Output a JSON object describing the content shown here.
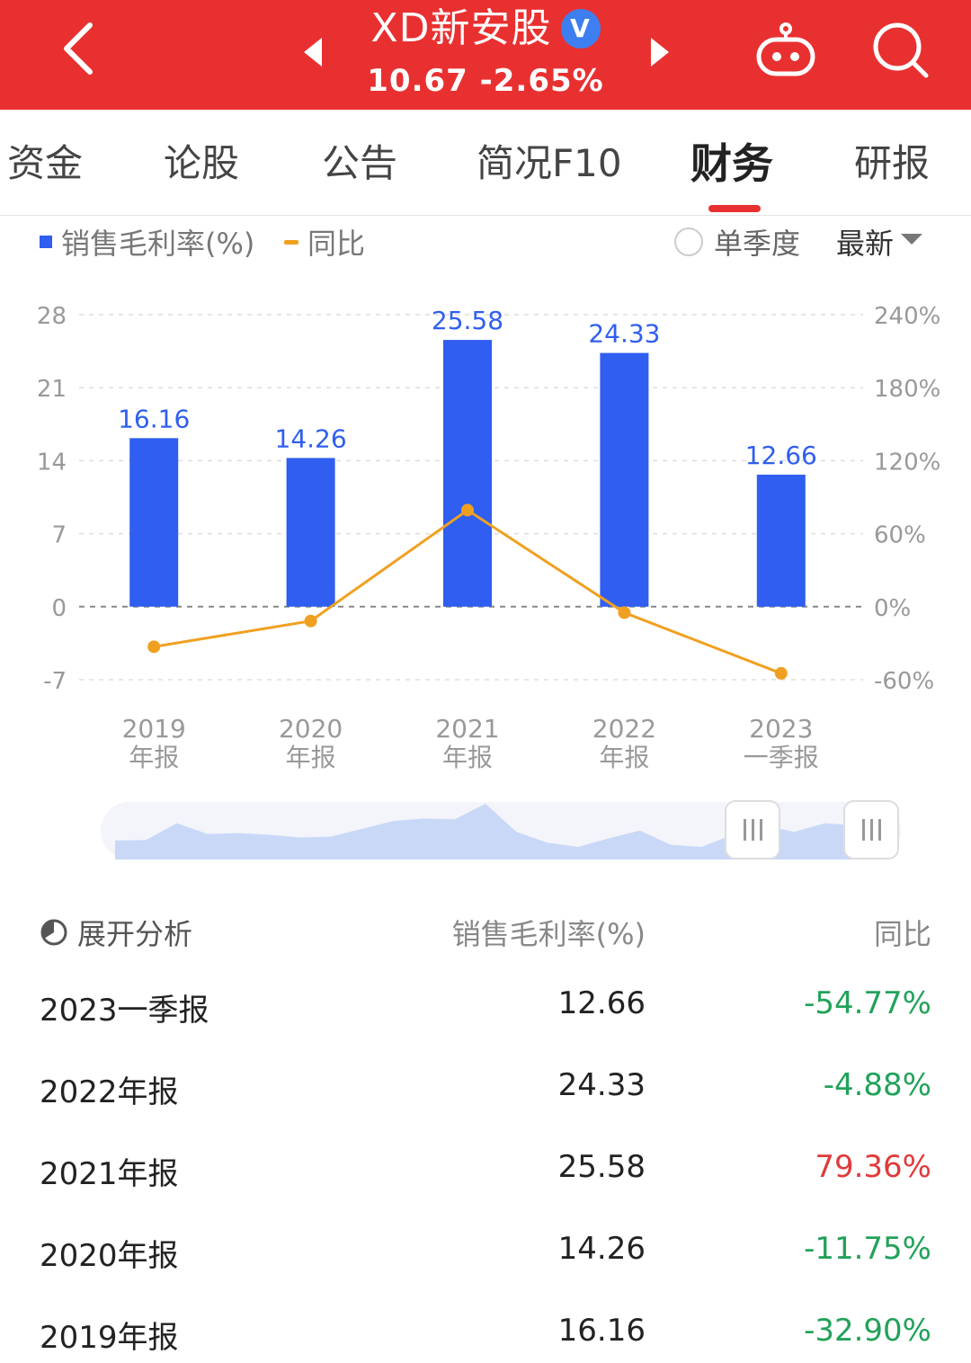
{
  "header": {
    "stock_name": "XD新安股",
    "verified_mark": "V",
    "price_line": "10.67 -2.65%",
    "icons": [
      "back-icon",
      "prev-arrow-icon",
      "next-arrow-icon",
      "robot-icon",
      "search-icon"
    ]
  },
  "tabs": [
    {
      "label": "资金",
      "active": false
    },
    {
      "label": "论股",
      "active": false
    },
    {
      "label": "公告",
      "active": false
    },
    {
      "label": "简况F10",
      "active": false
    },
    {
      "label": "财务",
      "active": true
    },
    {
      "label": "研报",
      "active": false
    }
  ],
  "legend": {
    "bar_label": "销售毛利率(%)",
    "line_label": "同比",
    "single_quarter": "单季度",
    "latest": "最新"
  },
  "colors": {
    "header": "#e93030",
    "bar": "#2f5ef0",
    "line": "#f0a020",
    "negative": "#22a25a",
    "positive": "#e03a3a"
  },
  "chart_data": {
    "type": "bar",
    "categories": [
      [
        "2019",
        "年报"
      ],
      [
        "2020",
        "年报"
      ],
      [
        "2021",
        "年报"
      ],
      [
        "2022",
        "年报"
      ],
      [
        "2023",
        "一季报"
      ]
    ],
    "series": [
      {
        "name": "销售毛利率(%)",
        "type": "bar",
        "axis": "left",
        "values": [
          16.16,
          14.26,
          25.58,
          24.33,
          12.66
        ],
        "labels": [
          "16.16",
          "14.26",
          "25.58",
          "24.33",
          "12.66"
        ]
      },
      {
        "name": "同比",
        "type": "line",
        "axis": "right",
        "values": [
          -32.9,
          -11.75,
          79.36,
          -4.88,
          -54.77
        ]
      }
    ],
    "y_left": {
      "ticks": [
        "28",
        "21",
        "14",
        "7",
        "0",
        "-7"
      ],
      "values": [
        28,
        21,
        14,
        7,
        0,
        -7
      ],
      "range": [
        -7,
        28
      ]
    },
    "y_right": {
      "ticks": [
        "240%",
        "180%",
        "120%",
        "60%",
        "0%",
        "-60%"
      ],
      "values": [
        240,
        180,
        120,
        60,
        0,
        -60
      ],
      "range": [
        -60,
        240
      ]
    },
    "grid": true
  },
  "range_slider": {
    "overview_values": [
      0.15,
      0.16,
      0.55,
      0.3,
      0.32,
      0.28,
      0.22,
      0.24,
      0.42,
      0.6,
      0.66,
      0.64,
      1.0,
      0.35,
      0.1,
      0.0,
      0.2,
      0.38,
      0.05,
      0.0,
      0.28,
      0.5,
      0.35,
      0.55,
      0.5
    ]
  },
  "table": {
    "head_left": "展开分析",
    "head_mid": "销售毛利率(%)",
    "head_right": "同比",
    "rows": [
      {
        "period": "2023一季报",
        "value": "12.66",
        "yoy": "-54.77%"
      },
      {
        "period": "2022年报",
        "value": "24.33",
        "yoy": "-4.88%"
      },
      {
        "period": "2021年报",
        "value": "25.58",
        "yoy": "79.36%"
      },
      {
        "period": "2020年报",
        "value": "14.26",
        "yoy": "-11.75%"
      },
      {
        "period": "2019年报",
        "value": "16.16",
        "yoy": "-32.90%"
      }
    ]
  }
}
